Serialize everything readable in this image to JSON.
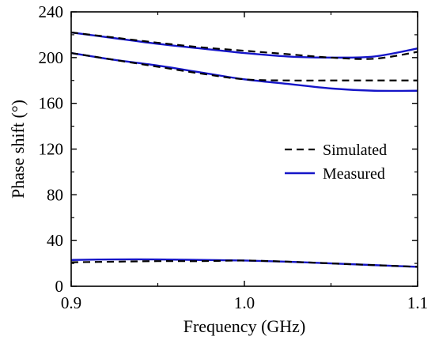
{
  "chart_data": {
    "type": "line",
    "title": "",
    "xlabel": "Frequency (GHz)",
    "ylabel": "Phase shift (°)",
    "xlim": [
      0.9,
      1.1
    ],
    "ylim": [
      0,
      240
    ],
    "xticks": [
      0.9,
      1.0,
      1.1
    ],
    "xtick_labels": [
      "0.9",
      "1.0",
      "1.1"
    ],
    "yticks": [
      0,
      40,
      80,
      120,
      160,
      200,
      240
    ],
    "ytick_labels": [
      "0",
      "40",
      "80",
      "120",
      "160",
      "200",
      "240"
    ],
    "grid": false,
    "legend": {
      "position": "center-right",
      "entries": [
        {
          "label": "Simulated",
          "style": "dashed",
          "color": "#000000"
        },
        {
          "label": "Measured",
          "style": "solid",
          "color": "#1515c8"
        }
      ]
    },
    "series": [
      {
        "group": "Simulated",
        "color": "#000000",
        "dash": true,
        "x": [
          0.9,
          0.925,
          0.95,
          0.975,
          1.0,
          1.025,
          1.05,
          1.075,
          1.1
        ],
        "y": [
          222,
          217.5,
          213,
          209,
          206,
          203,
          200,
          199,
          205
        ]
      },
      {
        "group": "Simulated",
        "color": "#000000",
        "dash": true,
        "x": [
          0.9,
          0.925,
          0.95,
          0.975,
          1.0,
          1.025,
          1.05,
          1.075,
          1.1
        ],
        "y": [
          204,
          198,
          192,
          186,
          181,
          180,
          180,
          180,
          180
        ]
      },
      {
        "group": "Simulated",
        "color": "#000000",
        "dash": true,
        "x": [
          0.9,
          0.925,
          0.95,
          0.975,
          1.0,
          1.025,
          1.05,
          1.075,
          1.1
        ],
        "y": [
          21,
          21.5,
          22,
          22,
          22.5,
          21.5,
          20,
          18.5,
          17
        ]
      },
      {
        "group": "Measured",
        "color": "#1515c8",
        "dash": false,
        "x": [
          0.9,
          0.925,
          0.95,
          0.975,
          1.0,
          1.025,
          1.05,
          1.075,
          1.1
        ],
        "y": [
          222,
          217,
          212,
          208,
          204,
          201,
          200,
          201,
          208
        ]
      },
      {
        "group": "Measured",
        "color": "#1515c8",
        "dash": false,
        "x": [
          0.9,
          0.925,
          0.95,
          0.975,
          1.0,
          1.025,
          1.05,
          1.075,
          1.1
        ],
        "y": [
          204,
          198,
          193,
          187,
          181,
          177,
          173,
          171,
          171
        ]
      },
      {
        "group": "Measured",
        "color": "#1515c8",
        "dash": false,
        "x": [
          0.9,
          0.925,
          0.95,
          0.975,
          1.0,
          1.025,
          1.05,
          1.075,
          1.1
        ],
        "y": [
          23,
          23.5,
          23.5,
          23,
          22.5,
          21.5,
          20,
          18.5,
          17
        ]
      }
    ]
  }
}
